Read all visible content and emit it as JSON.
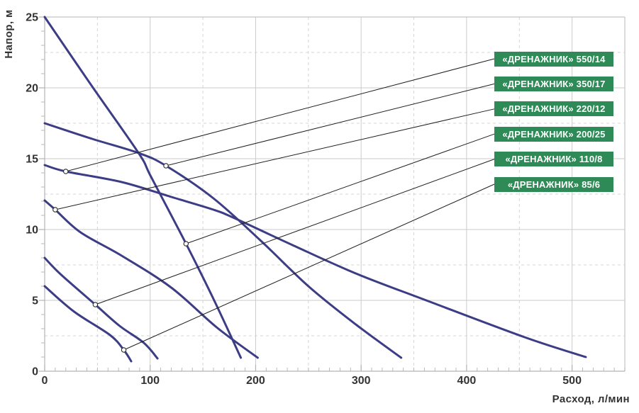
{
  "chart_data": {
    "type": "line",
    "title": "",
    "xlabel": "Расход, л/мин",
    "ylabel": "Напор, м",
    "xlim": [
      0,
      550
    ],
    "ylim": [
      0,
      25
    ],
    "x_major_ticks": [
      0,
      100,
      200,
      300,
      400,
      500
    ],
    "y_major_ticks": [
      0,
      5,
      10,
      15,
      20,
      25
    ],
    "x_minor_step": 10,
    "y_minor_step": 1,
    "grid": {
      "solid_x": [
        100,
        200,
        300,
        400,
        500
      ],
      "dashed_x": [
        50,
        150,
        250,
        350,
        450
      ],
      "solid_y": [
        5,
        10,
        15,
        20,
        25
      ],
      "dashed_y": [
        2.5,
        7.5,
        12.5,
        17.5,
        22.5
      ],
      "grid_on": true
    },
    "legend_position": "right-badges",
    "curve_color": "#3d3d85",
    "leader_color": "#1f1f1f",
    "marker_fill": "#ffffff",
    "marker_stroke": "#2a2a2a",
    "badge_bg": "#2e8b57",
    "badge_text_color": "#ffffff",
    "axis_text_color": "#333333",
    "series": [
      {
        "name": "«ДРЕНАЖНИК» 550/14",
        "points": [
          [
            0,
            14.55
          ],
          [
            20,
            14.1
          ],
          [
            73,
            13.35
          ],
          [
            120,
            12.3
          ],
          [
            160,
            11.4
          ],
          [
            180,
            10.8
          ],
          [
            235,
            8.9
          ],
          [
            295,
            6.9
          ],
          [
            360,
            5.05
          ],
          [
            455,
            2.4
          ],
          [
            513,
            1.0
          ]
        ],
        "callout_point": [
          20,
          14.1
        ]
      },
      {
        "name": "«ДРЕНАЖНИК» 350/17",
        "points": [
          [
            0,
            17.5
          ],
          [
            45,
            16.4
          ],
          [
            89,
            15.4
          ],
          [
            115,
            14.5
          ],
          [
            160,
            12.2
          ],
          [
            205,
            9.2
          ],
          [
            250,
            6.0
          ],
          [
            295,
            3.3
          ],
          [
            338,
            0.95
          ]
        ],
        "callout_point": [
          115,
          14.5
        ]
      },
      {
        "name": "«ДРЕНАЖНИК» 220/12",
        "points": [
          [
            0,
            12.05
          ],
          [
            10,
            11.4
          ],
          [
            34,
            9.8
          ],
          [
            73,
            8.15
          ],
          [
            120,
            5.9
          ],
          [
            163,
            3.1
          ],
          [
            202,
            0.95
          ]
        ],
        "callout_point": [
          10,
          11.4
        ]
      },
      {
        "name": "«ДРЕНАЖНИК» 200/25",
        "points": [
          [
            0,
            25
          ],
          [
            45,
            20.1
          ],
          [
            89,
            15.4
          ],
          [
            101,
            13.7
          ],
          [
            134,
            9.0
          ],
          [
            160,
            5.1
          ],
          [
            186,
            0.95
          ]
        ],
        "callout_point": [
          134,
          9.0
        ]
      },
      {
        "name": "«ДРЕНАЖНИК» 110/8",
        "points": [
          [
            0,
            8
          ],
          [
            15,
            6.85
          ],
          [
            48,
            4.7
          ],
          [
            71,
            3.2
          ],
          [
            94,
            2.0
          ],
          [
            107,
            0.9
          ]
        ],
        "callout_point": [
          48,
          4.7
        ]
      },
      {
        "name": "«ДРЕНАЖНИК» 85/6",
        "points": [
          [
            0,
            6
          ],
          [
            28,
            4.2
          ],
          [
            62,
            2.55
          ],
          [
            75,
            1.5
          ],
          [
            82,
            0.7
          ]
        ],
        "callout_point": [
          75,
          1.5
        ]
      }
    ]
  }
}
